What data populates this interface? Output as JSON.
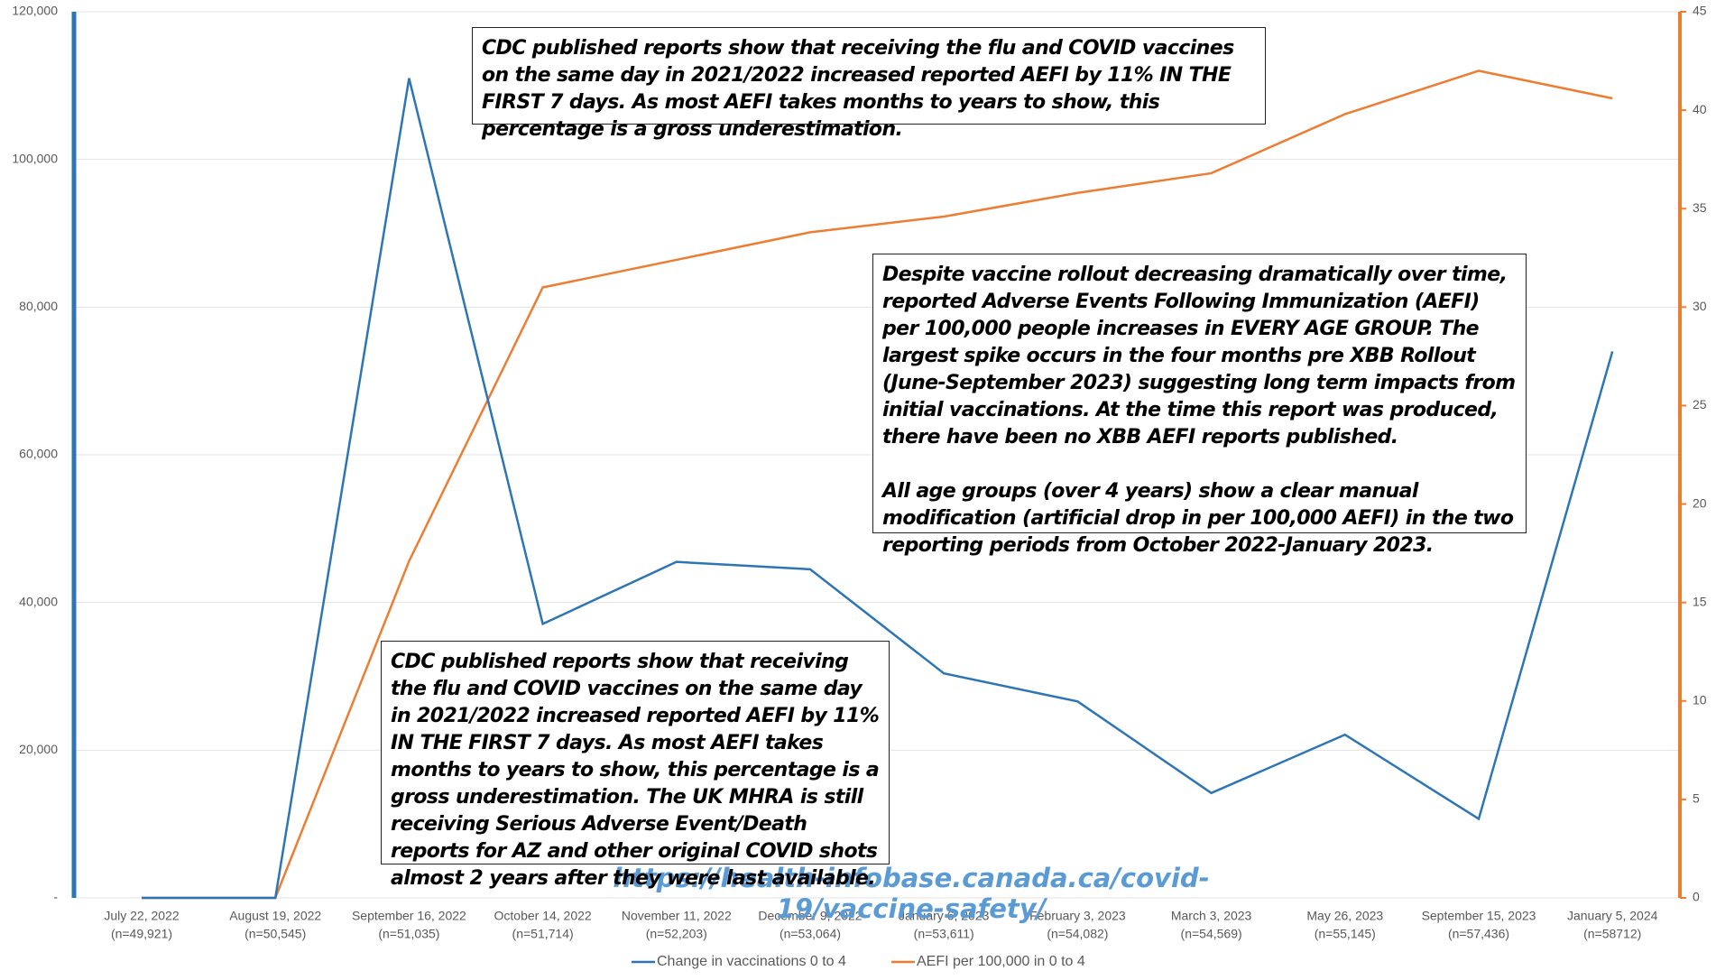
{
  "chart_data": {
    "type": "line",
    "categories": [
      "July 22, 2022",
      "August 19, 2022",
      "September 16, 2022",
      "October 14, 2022",
      "November 11, 2022",
      "December 9, 2022",
      "January 6, 2023",
      "February 3, 2023",
      "March 3, 2023",
      "May 26, 2023",
      "September 15, 2023",
      "January 5, 2024"
    ],
    "category_counts": [
      "(n=49,921)",
      "(n=50,545)",
      "(n=51,035)",
      "(n=51,714)",
      "(n=52,203)",
      "(n=53,064)",
      "(n=53,611)",
      "(n=54,082)",
      "(n=54,569)",
      "(n=55,145)",
      "(n=57,436)",
      "(n=58712)"
    ],
    "series": [
      {
        "name": "Change in vaccinations 0 to 4",
        "color": "#2e75b6",
        "axis": "y",
        "values": [
          0,
          0,
          111000,
          37100,
          45500,
          44500,
          30400,
          26600,
          14200,
          22100,
          10700,
          74000
        ]
      },
      {
        "name": "AEFI per 100,000 in 0 to 4",
        "color": "#ed7d31",
        "axis": "y2",
        "values": [
          0,
          0,
          17.1,
          31.0,
          32.4,
          33.8,
          34.6,
          35.8,
          36.8,
          39.8,
          42.0,
          40.6
        ]
      }
    ],
    "ylim": [
      0,
      120000
    ],
    "yticks": [
      {
        "value": 0,
        "label": "-"
      },
      {
        "value": 20000,
        "label": "20,000"
      },
      {
        "value": 40000,
        "label": "40,000"
      },
      {
        "value": 60000,
        "label": "60,000"
      },
      {
        "value": 80000,
        "label": "80,000"
      },
      {
        "value": 100000,
        "label": "100,000"
      },
      {
        "value": 120000,
        "label": "120,000"
      }
    ],
    "y2lim": [
      0,
      45
    ],
    "y2ticks": [
      0,
      5,
      10,
      15,
      20,
      25,
      30,
      35,
      40,
      45
    ],
    "grid": true,
    "legend": "bottom",
    "annotations": [
      [
        "CDC published reports show that receiving the flu and COVID vaccines on the same day in 2021/2022 increased reported AEFI by 11% IN THE FIRST 7 days. As most AEFI takes months to years to show, this percentage is a gross underestimation."
      ],
      [
        "Despite vaccine rollout decreasing dramatically over time, reported Adverse Events Following Immunization (AEFI) per 100,000 people increases in EVERY AGE GROUP. The largest spike occurs in the four months pre XBB Rollout (June-September 2023) suggesting long term impacts from initial vaccinations. At the time this report was produced, there have been no XBB AEFI reports published.",
        "All age groups (over 4 years) show a clear manual modification (artificial drop in per 100,000 AEFI) in the two reporting periods from October 2022-January 2023."
      ],
      [
        "CDC published reports show that receiving the flu and COVID vaccines on the same day in 2021/2022 increased reported AEFI by 11% IN THE FIRST 7 days. As most AEFI takes months to years to show, this percentage is a gross underestimation. The UK MHRA is still receiving Serious Adverse Event/Death reports for AZ and other original COVID shots almost 2 years after they were last available."
      ]
    ],
    "source": "https://health-infobase.canada.ca/covid-19/vaccine-safety/"
  }
}
